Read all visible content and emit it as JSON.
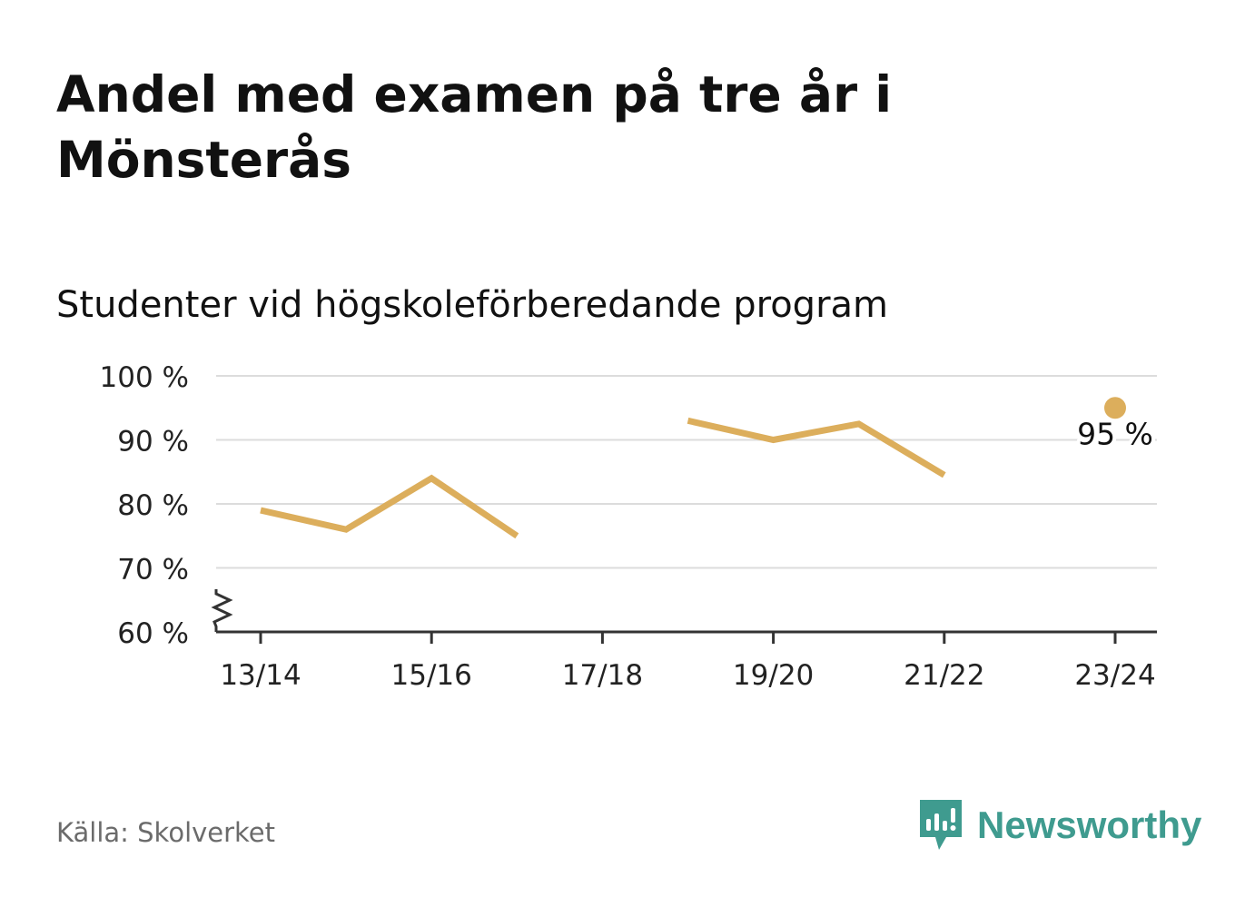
{
  "title": "Andel med examen på tre år i Mönsterås",
  "subtitle": "Studenter vid högskoleförberedande program",
  "source": "Källa: Skolverket",
  "brand": {
    "name": "Newsworthy",
    "icon": "newsworthy-logo-icon",
    "color": "#3f9b8f"
  },
  "chart_data": {
    "type": "line",
    "x": [
      "13/14",
      "14/15",
      "15/16",
      "16/17",
      "17/18",
      "18/19",
      "19/20",
      "20/21",
      "21/22",
      "22/23",
      "23/24"
    ],
    "x_tick_labels": [
      "13/14",
      "15/16",
      "17/18",
      "19/20",
      "21/22",
      "23/24"
    ],
    "series": [
      {
        "values": [
          79,
          76,
          84,
          75,
          null,
          93,
          90,
          92.5,
          84.5,
          null,
          95
        ],
        "color": "#dcae5c"
      }
    ],
    "y_tick_labels": [
      "60 %",
      "70 %",
      "80 %",
      "90 %",
      "100 %"
    ],
    "y_ticks": [
      60,
      70,
      80,
      90,
      100
    ],
    "ylim": [
      60,
      100
    ],
    "y_axis_break": true,
    "grid": true,
    "annotations": [
      {
        "x": "23/24",
        "y": 95,
        "text": "95 %"
      }
    ],
    "title": "",
    "xlabel": "",
    "ylabel": ""
  }
}
